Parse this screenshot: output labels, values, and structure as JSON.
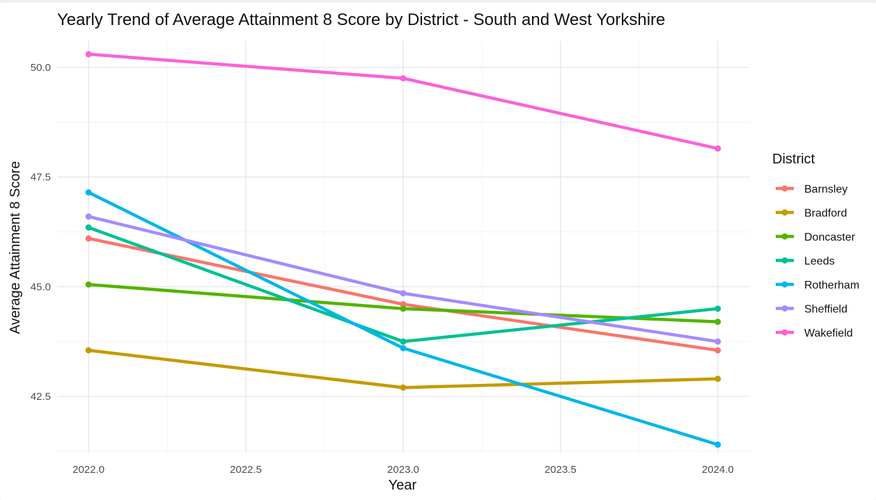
{
  "chart_data": {
    "type": "line",
    "title": "Yearly Trend of Average Attainment 8 Score by District - South and West Yorkshire",
    "xlabel": "Year",
    "ylabel": "Average Attainment 8 Score",
    "x": [
      2022.0,
      2023.0,
      2024.0
    ],
    "x_ticks": [
      "2022.0",
      "2022.5",
      "2023.0",
      "2023.5",
      "2024.0"
    ],
    "y_ticks": [
      "42.5",
      "45.0",
      "47.5",
      "50.0"
    ],
    "xlim": [
      2021.9,
      2024.1
    ],
    "ylim": [
      41.2,
      50.6
    ],
    "grid": true,
    "legend_position": "right",
    "legend_title": "District",
    "series": [
      {
        "name": "Barnsley",
        "color": "#F8766D",
        "values": [
          46.1,
          44.6,
          43.55
        ]
      },
      {
        "name": "Bradford",
        "color": "#C49A00",
        "values": [
          43.55,
          42.7,
          42.9
        ]
      },
      {
        "name": "Doncaster",
        "color": "#53B400",
        "values": [
          45.05,
          44.5,
          44.2
        ]
      },
      {
        "name": "Leeds",
        "color": "#00C094",
        "values": [
          46.35,
          43.75,
          44.5
        ]
      },
      {
        "name": "Rotherham",
        "color": "#00B6EB",
        "values": [
          47.15,
          43.6,
          41.4
        ]
      },
      {
        "name": "Sheffield",
        "color": "#A58AFF",
        "values": [
          46.6,
          44.85,
          43.75
        ]
      },
      {
        "name": "Wakefield",
        "color": "#FB61D7",
        "values": [
          50.3,
          49.75,
          48.15
        ]
      }
    ]
  }
}
